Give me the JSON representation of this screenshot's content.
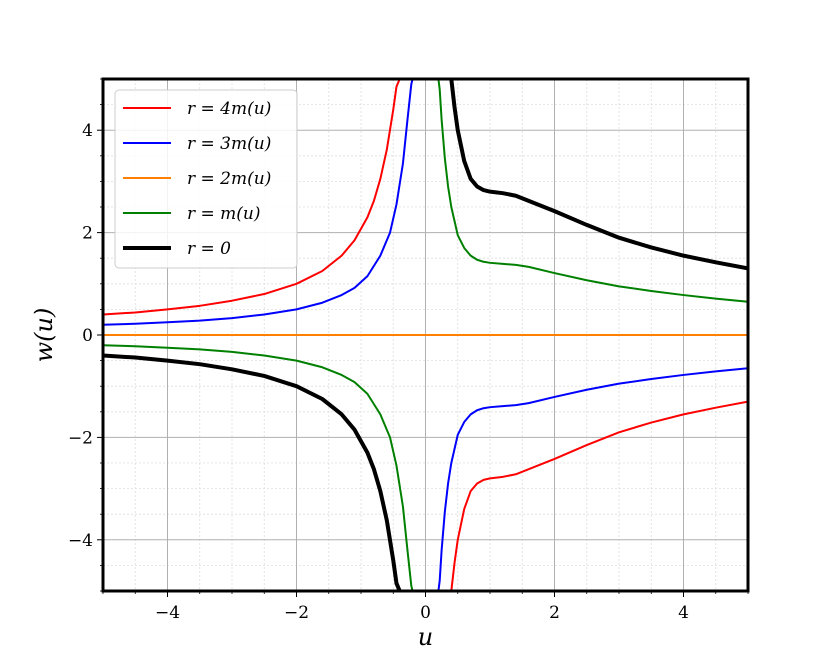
{
  "chart_data": {
    "type": "line",
    "title": "",
    "xlabel": "u",
    "ylabel": "w(u)",
    "xlim": [
      -5,
      5
    ],
    "ylim": [
      -5,
      5
    ],
    "xticks": [
      -4,
      -2,
      0,
      2,
      4
    ],
    "yticks": [
      -4,
      -2,
      0,
      2,
      4
    ],
    "xtick_labels": [
      "−4",
      "−2",
      "0",
      "2",
      "4"
    ],
    "ytick_labels": [
      "−4",
      "−2",
      "0",
      "2",
      "4"
    ],
    "grid": true,
    "minor_grid": true,
    "legend_position": "top-left",
    "series": [
      {
        "name": "r = 4m(u)",
        "color": "#ff0000",
        "branches": [
          {
            "x": [
              -5,
              -4.5,
              -4,
              -3.5,
              -3,
              -2.5,
              -2,
              -1.6,
              -1.3,
              -1.1,
              -0.9,
              -0.8,
              -0.7,
              -0.6,
              -0.5,
              -0.45,
              -0.4
            ],
            "y": [
              0.4,
              0.44,
              0.5,
              0.57,
              0.67,
              0.8,
              1.0,
              1.25,
              1.55,
              1.85,
              2.3,
              2.62,
              3.05,
              3.62,
              4.4,
              4.85,
              5.0
            ]
          },
          {
            "x": [
              0.4,
              0.45,
              0.5,
              0.6,
              0.7,
              0.8,
              0.9,
              1.0,
              1.2,
              1.4,
              1.6,
              1.8,
              2.0,
              2.5,
              3.0,
              3.5,
              4.0,
              4.5,
              5.0
            ],
            "y": [
              -5.0,
              -4.45,
              -4.0,
              -3.4,
              -3.05,
              -2.9,
              -2.83,
              -2.8,
              -2.77,
              -2.72,
              -2.62,
              -2.52,
              -2.42,
              -2.15,
              -1.9,
              -1.71,
              -1.55,
              -1.42,
              -1.3
            ]
          }
        ]
      },
      {
        "name": "r = 3m(u)",
        "color": "#0000ff",
        "branches": [
          {
            "x": [
              -5,
              -4.5,
              -4,
              -3.5,
              -3,
              -2.5,
              -2,
              -1.6,
              -1.3,
              -1.1,
              -0.9,
              -0.7,
              -0.55,
              -0.45,
              -0.35,
              -0.28,
              -0.22,
              -0.2
            ],
            "y": [
              0.2,
              0.22,
              0.25,
              0.28,
              0.33,
              0.4,
              0.5,
              0.63,
              0.78,
              0.92,
              1.15,
              1.55,
              2.0,
              2.55,
              3.35,
              4.2,
              4.9,
              5.0
            ]
          },
          {
            "x": [
              0.2,
              0.22,
              0.25,
              0.3,
              0.35,
              0.4,
              0.5,
              0.6,
              0.7,
              0.8,
              0.9,
              1.0,
              1.2,
              1.4,
              1.6,
              2.0,
              2.5,
              3.0,
              3.5,
              4.0,
              4.5,
              5.0
            ],
            "y": [
              -5.0,
              -4.8,
              -4.2,
              -3.45,
              -2.9,
              -2.5,
              -1.95,
              -1.7,
              -1.55,
              -1.47,
              -1.43,
              -1.41,
              -1.39,
              -1.37,
              -1.33,
              -1.21,
              -1.07,
              -0.95,
              -0.86,
              -0.78,
              -0.71,
              -0.65
            ]
          }
        ]
      },
      {
        "name": "r = 2m(u)",
        "color": "#ff8000",
        "branches": [
          {
            "x": [
              -5,
              5
            ],
            "y": [
              0,
              0
            ]
          }
        ]
      },
      {
        "name": "r = m(u)",
        "color": "#008000",
        "branches": [
          {
            "x": [
              -5,
              -4.5,
              -4,
              -3.5,
              -3,
              -2.5,
              -2,
              -1.6,
              -1.3,
              -1.1,
              -0.9,
              -0.7,
              -0.55,
              -0.45,
              -0.35,
              -0.28,
              -0.22,
              -0.2
            ],
            "y": [
              -0.2,
              -0.22,
              -0.25,
              -0.28,
              -0.33,
              -0.4,
              -0.5,
              -0.63,
              -0.78,
              -0.92,
              -1.15,
              -1.55,
              -2.0,
              -2.55,
              -3.35,
              -4.2,
              -4.9,
              -5.0
            ]
          },
          {
            "x": [
              0.2,
              0.22,
              0.25,
              0.3,
              0.35,
              0.4,
              0.5,
              0.6,
              0.7,
              0.8,
              0.9,
              1.0,
              1.2,
              1.4,
              1.6,
              2.0,
              2.5,
              3.0,
              3.5,
              4.0,
              4.5,
              5.0
            ],
            "y": [
              5.0,
              4.8,
              4.2,
              3.45,
              2.9,
              2.5,
              1.95,
              1.7,
              1.55,
              1.47,
              1.43,
              1.41,
              1.39,
              1.37,
              1.33,
              1.21,
              1.07,
              0.95,
              0.86,
              0.78,
              0.71,
              0.65
            ]
          }
        ]
      },
      {
        "name": "r = 0",
        "color": "#000000",
        "width": 4,
        "branches": [
          {
            "x": [
              -5,
              -4.5,
              -4,
              -3.5,
              -3,
              -2.5,
              -2,
              -1.6,
              -1.3,
              -1.1,
              -0.9,
              -0.8,
              -0.7,
              -0.6,
              -0.5,
              -0.45,
              -0.4
            ],
            "y": [
              -0.4,
              -0.44,
              -0.5,
              -0.57,
              -0.67,
              -0.8,
              -1.0,
              -1.25,
              -1.55,
              -1.85,
              -2.3,
              -2.62,
              -3.05,
              -3.62,
              -4.4,
              -4.85,
              -5.0
            ]
          },
          {
            "x": [
              0.4,
              0.45,
              0.5,
              0.6,
              0.7,
              0.8,
              0.9,
              1.0,
              1.2,
              1.4,
              1.6,
              1.8,
              2.0,
              2.5,
              3.0,
              3.5,
              4.0,
              4.5,
              5.0
            ],
            "y": [
              5.0,
              4.45,
              4.0,
              3.4,
              3.05,
              2.9,
              2.83,
              2.8,
              2.77,
              2.72,
              2.62,
              2.52,
              2.42,
              2.15,
              1.9,
              1.71,
              1.55,
              1.42,
              1.3
            ]
          }
        ]
      }
    ]
  }
}
